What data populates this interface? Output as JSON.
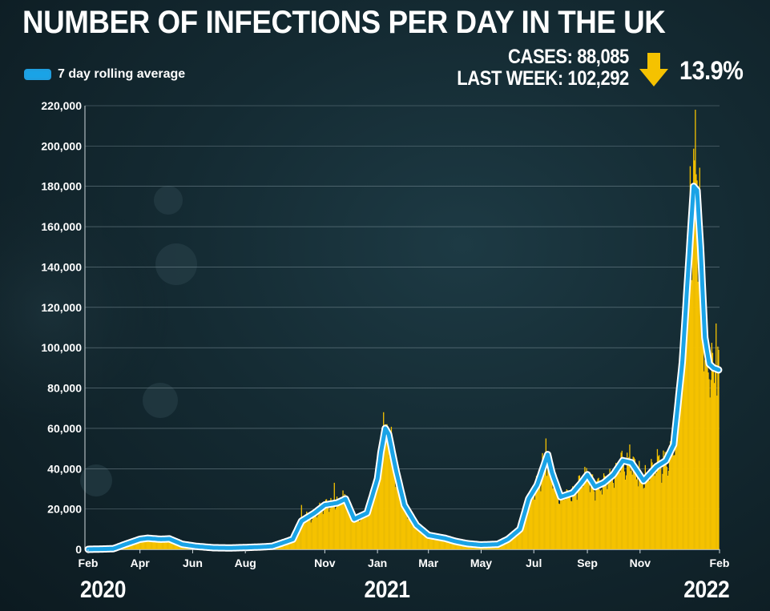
{
  "title": "NUMBER OF INFECTIONS PER DAY IN THE UK",
  "legend": {
    "label": "7 day rolling average",
    "color": "#1aa3e6"
  },
  "stats": {
    "cases": "CASES: 88,085",
    "last_week": "LAST WEEK: 102,292",
    "change": "13.9%",
    "change_direction": "down",
    "arrow_color": "#f5c200"
  },
  "years": [
    "2020",
    "2021",
    "2022"
  ],
  "chart_data": {
    "type": "bar",
    "title": "NUMBER OF INFECTIONS PER DAY IN THE UK",
    "xlabel": "",
    "ylabel": "",
    "ylim": [
      0,
      220000
    ],
    "yticks": [
      "0",
      "20,000",
      "40,000",
      "60,000",
      "80,000",
      "100,000",
      "120,000",
      "140,000",
      "160,000",
      "180,000",
      "200,000",
      "220,000"
    ],
    "ytick_values": [
      0,
      20000,
      40000,
      60000,
      80000,
      100000,
      120000,
      140000,
      160000,
      180000,
      200000,
      220000
    ],
    "xlim": [
      "2020-02-01",
      "2022-02-01"
    ],
    "xticks": [
      {
        "label": "Feb",
        "date": "2020-02-01"
      },
      {
        "label": "Apr",
        "date": "2020-04-01"
      },
      {
        "label": "Jun",
        "date": "2020-06-01"
      },
      {
        "label": "Aug",
        "date": "2020-08-01"
      },
      {
        "label": "Nov",
        "date": "2020-11-01"
      },
      {
        "label": "Jan",
        "date": "2021-01-01"
      },
      {
        "label": "Mar",
        "date": "2021-03-01"
      },
      {
        "label": "May",
        "date": "2021-05-01"
      },
      {
        "label": "Jul",
        "date": "2021-07-01"
      },
      {
        "label": "Sep",
        "date": "2021-09-01"
      },
      {
        "label": "Nov",
        "date": "2021-11-01"
      },
      {
        "label": "Feb",
        "date": "2022-02-01"
      }
    ],
    "grid": true,
    "legend_position": "top-left",
    "series": [
      {
        "name": "7 day rolling average",
        "kind": "line",
        "color": "#1aa3e6",
        "points": [
          [
            "2020-02-01",
            0
          ],
          [
            "2020-03-01",
            300
          ],
          [
            "2020-03-15",
            2500
          ],
          [
            "2020-04-01",
            5000
          ],
          [
            "2020-04-10",
            5500
          ],
          [
            "2020-04-25",
            5000
          ],
          [
            "2020-05-05",
            5200
          ],
          [
            "2020-05-20",
            2500
          ],
          [
            "2020-06-05",
            1500
          ],
          [
            "2020-06-25",
            800
          ],
          [
            "2020-07-15",
            700
          ],
          [
            "2020-08-01",
            900
          ],
          [
            "2020-08-20",
            1200
          ],
          [
            "2020-09-01",
            1500
          ],
          [
            "2020-09-15",
            3500
          ],
          [
            "2020-09-25",
            5000
          ],
          [
            "2020-10-05",
            14000
          ],
          [
            "2020-10-20",
            18000
          ],
          [
            "2020-11-01",
            22000
          ],
          [
            "2020-11-15",
            23000
          ],
          [
            "2020-11-25",
            25000
          ],
          [
            "2020-12-05",
            15000
          ],
          [
            "2020-12-20",
            18000
          ],
          [
            "2021-01-01",
            35000
          ],
          [
            "2021-01-05",
            48000
          ],
          [
            "2021-01-10",
            60000
          ],
          [
            "2021-01-14",
            57000
          ],
          [
            "2021-01-22",
            40000
          ],
          [
            "2021-02-01",
            22000
          ],
          [
            "2021-02-15",
            12000
          ],
          [
            "2021-03-01",
            7000
          ],
          [
            "2021-03-20",
            5500
          ],
          [
            "2021-04-01",
            4000
          ],
          [
            "2021-04-15",
            2800
          ],
          [
            "2021-05-01",
            2200
          ],
          [
            "2021-05-20",
            2500
          ],
          [
            "2021-06-01",
            5000
          ],
          [
            "2021-06-15",
            10000
          ],
          [
            "2021-06-25",
            25000
          ],
          [
            "2021-07-05",
            32000
          ],
          [
            "2021-07-17",
            47000
          ],
          [
            "2021-07-22",
            38000
          ],
          [
            "2021-08-01",
            26000
          ],
          [
            "2021-08-15",
            28000
          ],
          [
            "2021-08-25",
            33000
          ],
          [
            "2021-09-01",
            37000
          ],
          [
            "2021-09-10",
            31000
          ],
          [
            "2021-09-20",
            33000
          ],
          [
            "2021-10-01",
            37000
          ],
          [
            "2021-10-12",
            44000
          ],
          [
            "2021-10-22",
            43000
          ],
          [
            "2021-11-05",
            34000
          ],
          [
            "2021-11-20",
            41000
          ],
          [
            "2021-12-01",
            44000
          ],
          [
            "2021-12-10",
            52000
          ],
          [
            "2021-12-20",
            93000
          ],
          [
            "2021-12-27",
            140000
          ],
          [
            "2022-01-02",
            180000
          ],
          [
            "2022-01-06",
            178000
          ],
          [
            "2022-01-10",
            150000
          ],
          [
            "2022-01-15",
            105000
          ],
          [
            "2022-01-20",
            92000
          ],
          [
            "2022-01-25",
            90000
          ],
          [
            "2022-01-31",
            89000
          ]
        ]
      }
    ],
    "daily_cases_color": "#f5c200",
    "daily_cases_approx": {
      "note_spikes": [
        [
          "2020-10-05",
          22000
        ],
        [
          "2020-11-12",
          33000
        ],
        [
          "2021-01-08",
          68000
        ],
        [
          "2021-07-15",
          55000
        ],
        [
          "2021-10-20",
          52000
        ],
        [
          "2021-12-29",
          190000
        ],
        [
          "2022-01-04",
          218000
        ],
        [
          "2022-01-28",
          112000
        ]
      ]
    }
  }
}
